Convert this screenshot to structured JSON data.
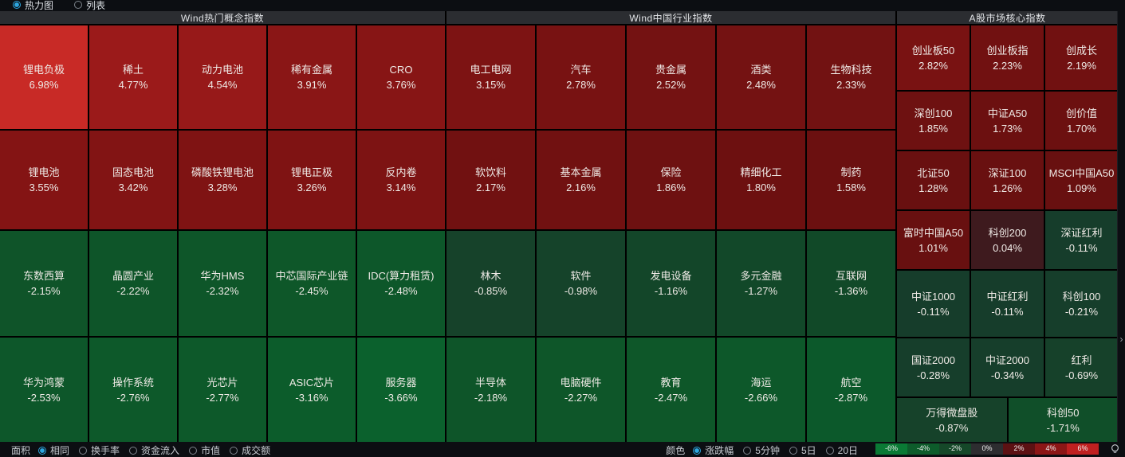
{
  "view_modes": {
    "options": [
      {
        "label": "热力图",
        "selected": true
      },
      {
        "label": "列表",
        "selected": false
      }
    ]
  },
  "accent_color": "#2da7e0",
  "sections": [
    {
      "title": "Wind热门概念指数",
      "columns": 5,
      "tiles": [
        {
          "label": "锂电负极",
          "change": "6.98%"
        },
        {
          "label": "稀土",
          "change": "4.77%"
        },
        {
          "label": "动力电池",
          "change": "4.54%"
        },
        {
          "label": "稀有金属",
          "change": "3.91%"
        },
        {
          "label": "CRO",
          "change": "3.76%"
        },
        {
          "label": "锂电池",
          "change": "3.55%"
        },
        {
          "label": "固态电池",
          "change": "3.42%"
        },
        {
          "label": "磷酸铁锂电池",
          "change": "3.28%"
        },
        {
          "label": "锂电正极",
          "change": "3.26%"
        },
        {
          "label": "反内卷",
          "change": "3.14%"
        },
        {
          "label": "东数西算",
          "change": "-2.15%"
        },
        {
          "label": "晶圆产业",
          "change": "-2.22%"
        },
        {
          "label": "华为HMS",
          "change": "-2.32%"
        },
        {
          "label": "中芯国际产业链",
          "change": "-2.45%"
        },
        {
          "label": "IDC(算力租赁)",
          "change": "-2.48%"
        },
        {
          "label": "华为鸿蒙",
          "change": "-2.53%"
        },
        {
          "label": "操作系统",
          "change": "-2.76%"
        },
        {
          "label": "光芯片",
          "change": "-2.77%"
        },
        {
          "label": "ASIC芯片",
          "change": "-3.16%"
        },
        {
          "label": "服务器",
          "change": "-3.66%"
        }
      ]
    },
    {
      "title": "Wind中国行业指数",
      "columns": 5,
      "tiles": [
        {
          "label": "电工电网",
          "change": "3.15%"
        },
        {
          "label": "汽车",
          "change": "2.78%"
        },
        {
          "label": "贵金属",
          "change": "2.52%"
        },
        {
          "label": "酒类",
          "change": "2.48%"
        },
        {
          "label": "生物科技",
          "change": "2.33%"
        },
        {
          "label": "软饮料",
          "change": "2.17%"
        },
        {
          "label": "基本金属",
          "change": "2.16%"
        },
        {
          "label": "保险",
          "change": "1.86%"
        },
        {
          "label": "精细化工",
          "change": "1.80%"
        },
        {
          "label": "制药",
          "change": "1.58%"
        },
        {
          "label": "林木",
          "change": "-0.85%"
        },
        {
          "label": "软件",
          "change": "-0.98%"
        },
        {
          "label": "发电设备",
          "change": "-1.16%"
        },
        {
          "label": "多元金融",
          "change": "-1.27%"
        },
        {
          "label": "互联网",
          "change": "-1.36%"
        },
        {
          "label": "半导体",
          "change": "-2.18%"
        },
        {
          "label": "电脑硬件",
          "change": "-2.27%"
        },
        {
          "label": "教育",
          "change": "-2.47%"
        },
        {
          "label": "海运",
          "change": "-2.66%"
        },
        {
          "label": "航空",
          "change": "-2.87%"
        }
      ]
    },
    {
      "title": "A股市场核心指数",
      "columns": 3,
      "tiles": [
        {
          "label": "创业板50",
          "change": "2.82%"
        },
        {
          "label": "创业板指",
          "change": "2.23%"
        },
        {
          "label": "创成长",
          "change": "2.19%"
        },
        {
          "label": "深创100",
          "change": "1.85%"
        },
        {
          "label": "中证A50",
          "change": "1.73%"
        },
        {
          "label": "创价值",
          "change": "1.70%"
        },
        {
          "label": "北证50",
          "change": "1.28%"
        },
        {
          "label": "深证100",
          "change": "1.26%"
        },
        {
          "label": "MSCI中国A50",
          "change": "1.09%"
        },
        {
          "label": "富时中国A50",
          "change": "1.01%"
        },
        {
          "label": "科创200",
          "change": "0.04%"
        },
        {
          "label": "深证红利",
          "change": "-0.11%"
        },
        {
          "label": "中证1000",
          "change": "-0.11%"
        },
        {
          "label": "中证红利",
          "change": "-0.11%"
        },
        {
          "label": "科创100",
          "change": "-0.21%"
        },
        {
          "label": "国证2000",
          "change": "-0.28%"
        },
        {
          "label": "中证2000",
          "change": "-0.34%"
        },
        {
          "label": "红利",
          "change": "-0.69%"
        },
        {
          "label": "万得微盘股",
          "change": "-0.87%",
          "wide": true
        },
        {
          "label": "科创50",
          "change": "-1.71%",
          "wide": true
        }
      ]
    }
  ],
  "settings_bar": {
    "area": {
      "label": "面积",
      "options": [
        {
          "label": "相同",
          "selected": true
        },
        {
          "label": "换手率",
          "selected": false
        },
        {
          "label": "资金流入",
          "selected": false
        },
        {
          "label": "市值",
          "selected": false
        },
        {
          "label": "成交额",
          "selected": false
        }
      ]
    },
    "color": {
      "label": "颜色",
      "options": [
        {
          "label": "涨跌幅",
          "selected": true
        },
        {
          "label": "5分钟",
          "selected": false
        },
        {
          "label": "5日",
          "selected": false
        },
        {
          "label": "20日",
          "selected": false
        }
      ]
    },
    "legend": [
      {
        "label": "-6%",
        "color": "#0a7a35"
      },
      {
        "label": "-4%",
        "color": "#0d5c2b"
      },
      {
        "label": "-2%",
        "color": "#154829"
      },
      {
        "label": "0%",
        "color": "#2d2d30"
      },
      {
        "label": "2%",
        "color": "#5c1113"
      },
      {
        "label": "4%",
        "color": "#8c1616"
      },
      {
        "label": "6%",
        "color": "#c02020"
      }
    ]
  },
  "icons": {
    "expand_chevron": "›",
    "bulb": "bulb-icon"
  }
}
